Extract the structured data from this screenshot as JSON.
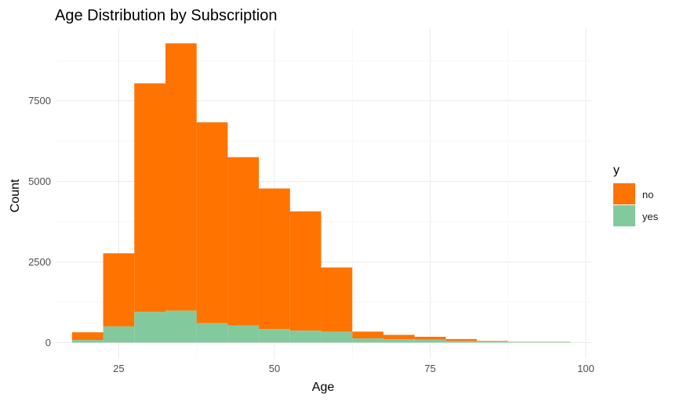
{
  "chart_data": {
    "type": "bar",
    "subtype": "stacked-histogram",
    "title": "Age Distribution by Subscription",
    "xlabel": "Age",
    "ylabel": "Count",
    "xlim": [
      15,
      101
    ],
    "ylim": [
      -500,
      9750
    ],
    "xticks": [
      25,
      50,
      75,
      100
    ],
    "yticks": [
      0,
      2500,
      5000,
      7500
    ],
    "grid": true,
    "legend": {
      "title": "y",
      "position": "right"
    },
    "bins": [
      {
        "x0": 17.5,
        "x1": 22.5
      },
      {
        "x0": 22.5,
        "x1": 27.5
      },
      {
        "x0": 27.5,
        "x1": 32.5
      },
      {
        "x0": 32.5,
        "x1": 37.5
      },
      {
        "x0": 37.5,
        "x1": 42.5
      },
      {
        "x0": 42.5,
        "x1": 47.5
      },
      {
        "x0": 47.5,
        "x1": 52.5
      },
      {
        "x0": 52.5,
        "x1": 57.5
      },
      {
        "x0": 57.5,
        "x1": 62.5
      },
      {
        "x0": 62.5,
        "x1": 67.5
      },
      {
        "x0": 67.5,
        "x1": 72.5
      },
      {
        "x0": 72.5,
        "x1": 77.5
      },
      {
        "x0": 77.5,
        "x1": 82.5
      },
      {
        "x0": 82.5,
        "x1": 87.5
      },
      {
        "x0": 87.5,
        "x1": 92.5
      },
      {
        "x0": 92.5,
        "x1": 97.5
      }
    ],
    "series": [
      {
        "name": "yes",
        "color": "#82CA9D",
        "values": [
          80,
          500,
          950,
          990,
          600,
          530,
          420,
          370,
          340,
          130,
          100,
          90,
          50,
          30,
          20,
          20
        ]
      },
      {
        "name": "no",
        "color": "#FF7300",
        "values": [
          240,
          2270,
          7090,
          8290,
          6230,
          5220,
          4360,
          3700,
          1990,
          210,
          140,
          90,
          60,
          20,
          5,
          5
        ]
      }
    ]
  }
}
